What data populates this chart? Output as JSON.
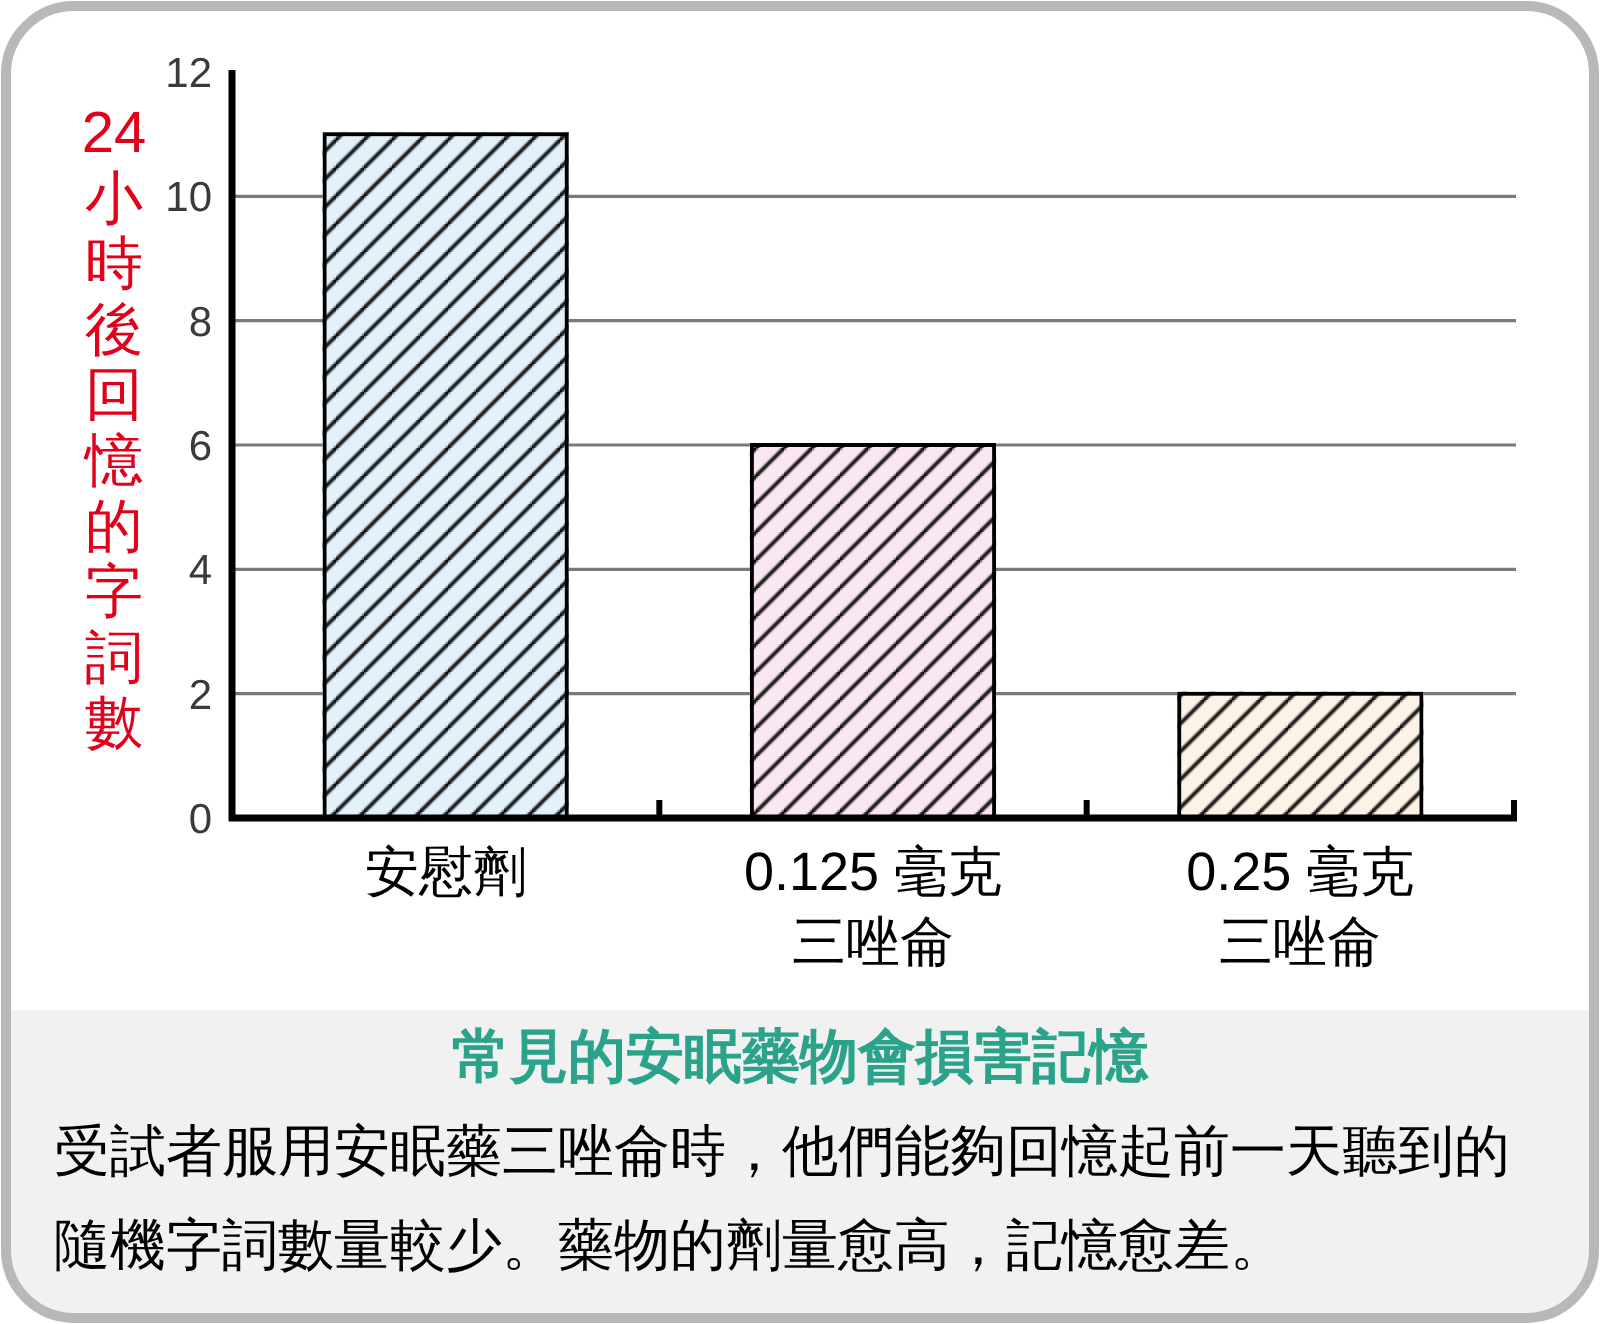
{
  "chart_data": {
    "type": "bar",
    "title": "常見的安眠藥物會損害記憶",
    "ylabel": "24小時後回憶的字詞數",
    "categories": [
      "安慰劑",
      "0.125 毫克三唑侖",
      "0.25 毫克三唑侖"
    ],
    "values": [
      11,
      6,
      2
    ],
    "colors": [
      "#e3f1fb",
      "#fbe7f1",
      "#fcf2e6"
    ],
    "ylim": [
      0,
      12
    ],
    "yticks": [
      0,
      2,
      4,
      6,
      8,
      10,
      12
    ],
    "grid": "y",
    "annotations": [
      "受試者服用安眠藥三唑侖時，他們能夠回憶起前一天聽到的隨機字詞數量較少。藥物的劑量愈高，記憶愈差。"
    ]
  }
}
